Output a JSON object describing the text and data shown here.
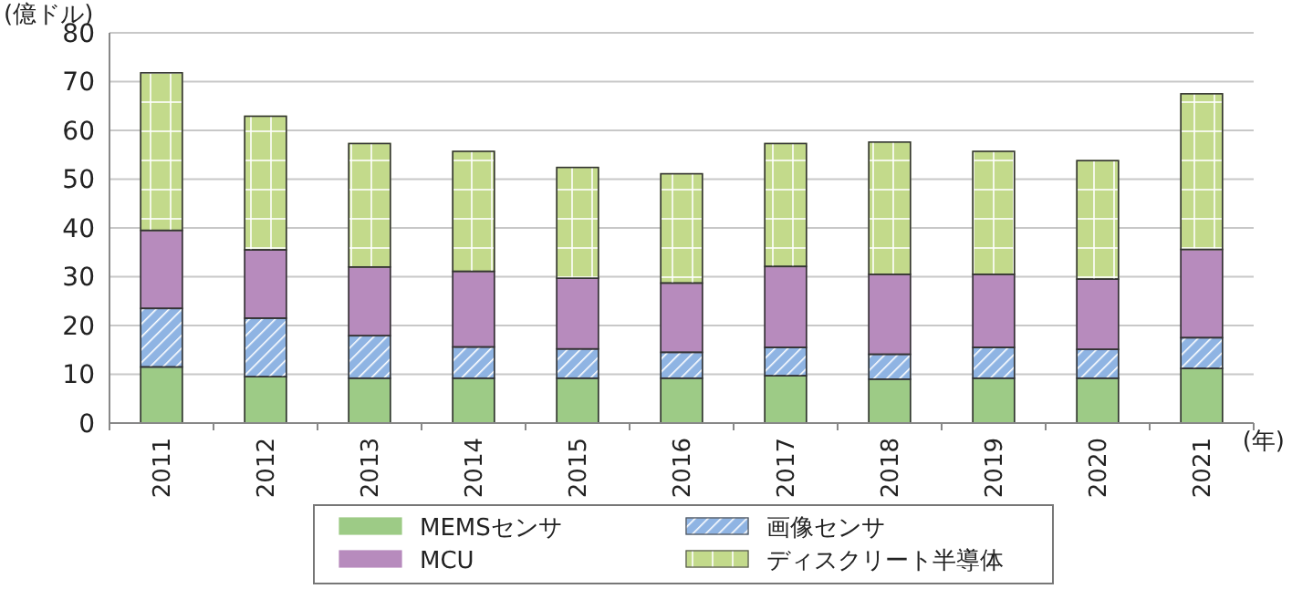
{
  "chart_data": {
    "type": "bar",
    "stacked": true,
    "ylabel": "(億ドル)",
    "xlabel": "(年)",
    "categories": [
      "2011",
      "2012",
      "2013",
      "2014",
      "2015",
      "2016",
      "2017",
      "2018",
      "2019",
      "2020",
      "2021"
    ],
    "ylim": [
      0,
      80
    ],
    "yticks": [
      0,
      10,
      20,
      30,
      40,
      50,
      60,
      70,
      80
    ],
    "grid": "y",
    "legend": "bottom",
    "series": [
      {
        "name": "MEMSセンサ",
        "color": "#9dcb86",
        "values": [
          11.5,
          9.5,
          9.2,
          9.2,
          9.2,
          9.2,
          9.7,
          9.0,
          9.2,
          9.2,
          11.2
        ]
      },
      {
        "name": "画像センサ",
        "color": "#8fb4e3",
        "values": [
          12.0,
          12.0,
          8.7,
          6.4,
          6.0,
          5.3,
          5.8,
          5.1,
          6.3,
          5.9,
          6.3
        ]
      },
      {
        "name": "MCU",
        "color": "#b78bbd",
        "values": [
          16.0,
          14.0,
          14.1,
          15.5,
          14.5,
          14.2,
          16.6,
          16.4,
          15.0,
          14.4,
          18.1
        ]
      },
      {
        "name": "ディスクリート半導体",
        "color": "#c3da8b",
        "values": [
          32.3,
          27.4,
          25.3,
          24.6,
          22.7,
          22.4,
          25.2,
          27.1,
          25.2,
          24.3,
          31.9
        ]
      }
    ]
  }
}
